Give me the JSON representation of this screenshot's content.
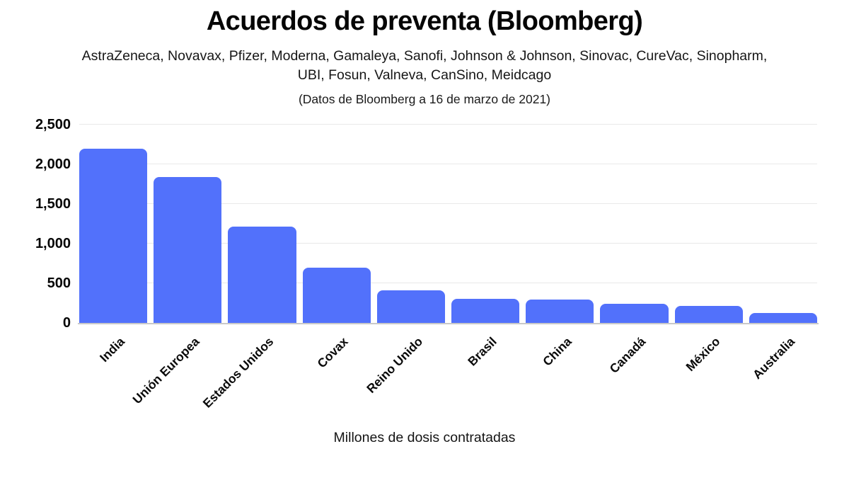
{
  "header": {
    "title": "Acuerdos de preventa (Bloomberg)",
    "subtitle_lines": [
      "AstraZeneca, Novavax, Pfizer, Moderna, Gamaleya, Sanofi, Johnson & Johnson, Sinovac, CureVac, Sinopharm,",
      "UBI, Fosun, Valneva, CanSino, Meidcago"
    ],
    "note": "(Datos de Bloomberg a 16 de marzo de 2021)"
  },
  "chart_data": {
    "type": "bar",
    "title": "Acuerdos de preventa (Bloomberg)",
    "categories": [
      "India",
      "Unión Europea",
      "Estados Unidos",
      "Covax",
      "Reino Unido",
      "Brasil",
      "China",
      "Canadá",
      "México",
      "Australia"
    ],
    "values": [
      2200,
      1835,
      1210,
      700,
      415,
      300,
      297,
      240,
      212,
      127
    ],
    "xlabel": "Millones de dosis contratadas",
    "ylabel": "",
    "ylim": [
      0,
      2500
    ],
    "ytick_labels": [
      "0",
      "500",
      "1,000",
      "1,500",
      "2,000",
      "2,500"
    ],
    "ytick_values": [
      0,
      500,
      1000,
      1500,
      2000,
      2500
    ],
    "grid": true,
    "legend_position": "none",
    "bar_color": "#5271fb",
    "gridline_color": "#e9e9e9",
    "baseline_color": "#c9c9c9"
  }
}
